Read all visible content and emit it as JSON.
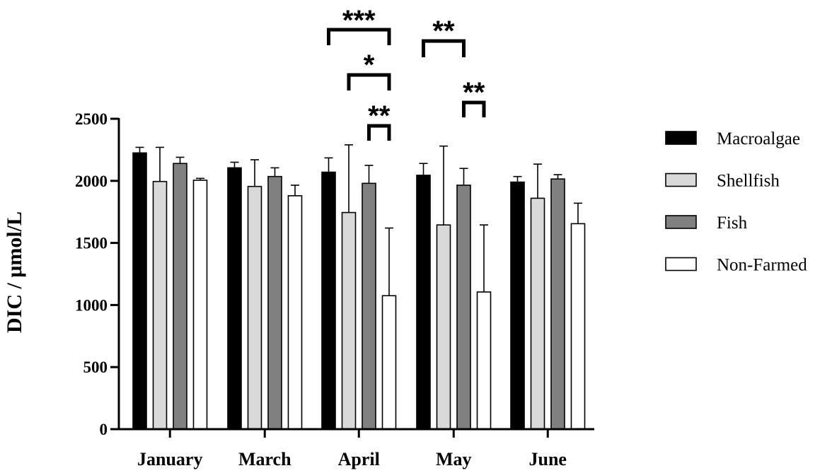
{
  "chart_data": {
    "type": "bar",
    "ylabel": "DIC / μmol/L",
    "xlabel": "",
    "ylim": [
      0,
      2500
    ],
    "yticks": [
      0,
      500,
      1000,
      1500,
      2000,
      2500
    ],
    "categories": [
      "January",
      "March",
      "April",
      "May",
      "June"
    ],
    "legend_position": "right",
    "series": [
      {
        "name": "Macroalgae",
        "color": "#000000",
        "values": [
          2225,
          2105,
          2070,
          2045,
          1990
        ],
        "errors": [
          45,
          45,
          115,
          95,
          45
        ]
      },
      {
        "name": "Shellfish",
        "color": "#d9d9d9",
        "values": [
          1995,
          1955,
          1745,
          1645,
          1860
        ],
        "errors": [
          275,
          215,
          545,
          635,
          275
        ]
      },
      {
        "name": "Fish",
        "color": "#808080",
        "values": [
          2140,
          2035,
          1980,
          1965,
          2015
        ],
        "errors": [
          50,
          70,
          145,
          135,
          35
        ]
      },
      {
        "name": "Non-Farmed",
        "color": "#ffffff",
        "values": [
          2005,
          1880,
          1075,
          1105,
          1655
        ],
        "errors": [
          15,
          85,
          545,
          540,
          165
        ]
      }
    ],
    "significance": [
      {
        "category": "April",
        "from_series": 0,
        "to_series": 3,
        "label": "***"
      },
      {
        "category": "April",
        "from_series": 1,
        "to_series": 3,
        "label": "*"
      },
      {
        "category": "April",
        "from_series": 2,
        "to_series": 3,
        "label": "**"
      },
      {
        "category": "May",
        "from_series": 0,
        "to_series": 2,
        "label": "**"
      },
      {
        "category": "May",
        "from_series": 2,
        "to_series": 3,
        "label": "**"
      }
    ]
  }
}
